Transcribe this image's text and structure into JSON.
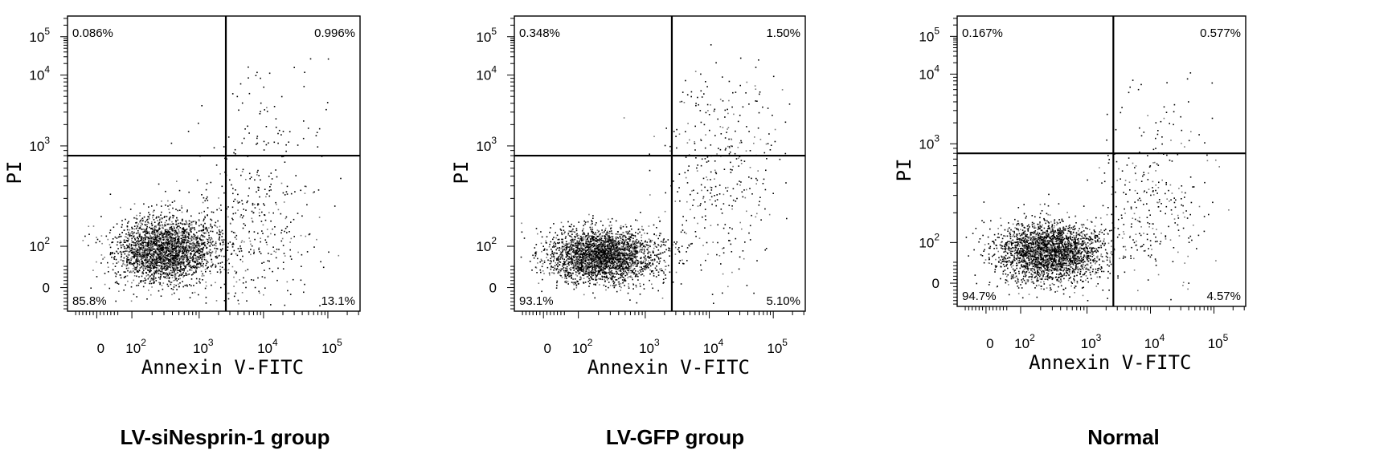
{
  "chart_data": [
    {
      "type": "scatter",
      "title": "LV-siNesprin-1 group",
      "xlabel": "Annexin V-FITC",
      "ylabel": "PI",
      "x_ticks": [
        "0",
        "10^2",
        "10^3",
        "10^4",
        "10^5"
      ],
      "y_ticks": [
        "0",
        "10^2",
        "10^3",
        "10^4",
        "10^5"
      ],
      "quadrants": {
        "upper_left": "0.086%",
        "upper_right": "0.996%",
        "lower_left": "85.8%",
        "lower_right": "13.1%"
      },
      "gate": {
        "x": 2600,
        "y": 800
      }
    },
    {
      "type": "scatter",
      "title": "LV-GFP group",
      "xlabel": "Annexin V-FITC",
      "ylabel": "PI",
      "x_ticks": [
        "0",
        "10^2",
        "10^3",
        "10^4",
        "10^5"
      ],
      "y_ticks": [
        "0",
        "10^2",
        "10^3",
        "10^4",
        "10^5"
      ],
      "quadrants": {
        "upper_left": "0.348%",
        "upper_right": "1.50%",
        "lower_left": "93.1%",
        "lower_right": "5.10%"
      },
      "gate": {
        "x": 2600,
        "y": 800
      }
    },
    {
      "type": "scatter",
      "title": "Normal",
      "xlabel": "Annexin V-FITC",
      "ylabel": "PI",
      "x_ticks": [
        "0",
        "10^2",
        "10^3",
        "10^4",
        "10^5"
      ],
      "y_ticks": [
        "0",
        "10^2",
        "10^3",
        "10^4",
        "10^5"
      ],
      "quadrants": {
        "upper_left": "0.167%",
        "upper_right": "0.577%",
        "lower_left": "94.7%",
        "lower_right": "4.57%"
      },
      "gate": {
        "x": 2600,
        "y": 800
      }
    }
  ]
}
